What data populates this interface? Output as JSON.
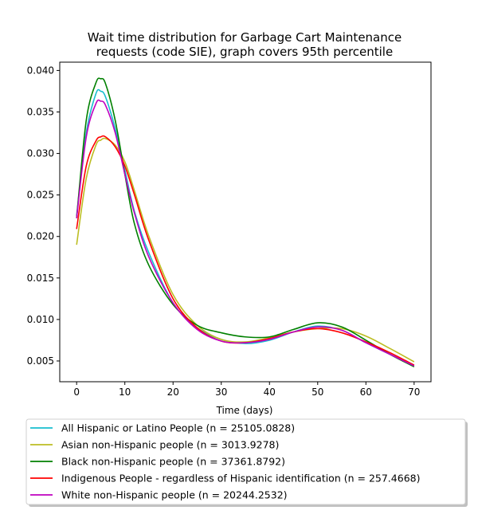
{
  "chart_data": {
    "type": "line",
    "title_line1": "Wait time distribution  for Garbage Cart Maintenance",
    "title_line2": "requests (code SIE), graph covers 95th percentile",
    "xlabel": "Time (days)",
    "ylabel": "",
    "xlim": [
      -3.5,
      73.5
    ],
    "ylim": [
      0.0025,
      0.041
    ],
    "xticks": [
      0,
      10,
      20,
      30,
      40,
      50,
      60,
      70
    ],
    "yticks": [
      0.005,
      0.01,
      0.015,
      0.02,
      0.025,
      0.03,
      0.035,
      0.04
    ],
    "ytick_labels": [
      "0.005",
      "0.010",
      "0.015",
      "0.020",
      "0.025",
      "0.030",
      "0.035",
      "0.040"
    ],
    "grid": false,
    "legend_position": "bottom, below plot",
    "x": [
      0,
      2,
      4,
      5,
      6,
      8,
      10,
      12,
      15,
      20,
      25,
      30,
      35,
      40,
      45,
      50,
      55,
      60,
      65,
      70
    ],
    "series": [
      {
        "name": "All Hispanic or Latino People (n = 25105.0828)",
        "color": "#17becf",
        "values": [
          0.0225,
          0.0325,
          0.0372,
          0.0375,
          0.0368,
          0.033,
          0.028,
          0.023,
          0.018,
          0.012,
          0.009,
          0.0076,
          0.0071,
          0.0075,
          0.0085,
          0.0092,
          0.0087,
          0.0072,
          0.0058,
          0.0045
        ]
      },
      {
        "name": "Asian non-Hispanic people (n = 3013.9278)",
        "color": "#bcbd22",
        "values": [
          0.019,
          0.027,
          0.031,
          0.0316,
          0.0318,
          0.031,
          0.029,
          0.0255,
          0.02,
          0.013,
          0.0093,
          0.0076,
          0.0073,
          0.0078,
          0.0085,
          0.0089,
          0.0089,
          0.008,
          0.0065,
          0.0049
        ]
      },
      {
        "name": "Black non-Hispanic people (n = 37361.8792)",
        "color": "#008000",
        "values": [
          0.0222,
          0.034,
          0.0385,
          0.039,
          0.0384,
          0.034,
          0.0275,
          0.0215,
          0.0165,
          0.0118,
          0.0093,
          0.0084,
          0.0079,
          0.0079,
          0.0088,
          0.0096,
          0.0091,
          0.0075,
          0.0058,
          0.0043
        ]
      },
      {
        "name": "Indigenous People - regardless of Hispanic identification (n = 257.4668)",
        "color": "#ff0000",
        "values": [
          0.0209,
          0.0285,
          0.0315,
          0.032,
          0.032,
          0.0308,
          0.0285,
          0.025,
          0.0195,
          0.0125,
          0.009,
          0.0074,
          0.0072,
          0.0077,
          0.0085,
          0.0089,
          0.0084,
          0.0073,
          0.006,
          0.0045
        ]
      },
      {
        "name": "White non-Hispanic people (n = 20244.2532)",
        "color": "#bf00bf",
        "values": [
          0.0222,
          0.032,
          0.036,
          0.0363,
          0.0358,
          0.0325,
          0.0275,
          0.0228,
          0.0175,
          0.012,
          0.0088,
          0.0074,
          0.0072,
          0.0076,
          0.0085,
          0.0091,
          0.0087,
          0.0072,
          0.0058,
          0.0044
        ]
      }
    ]
  }
}
